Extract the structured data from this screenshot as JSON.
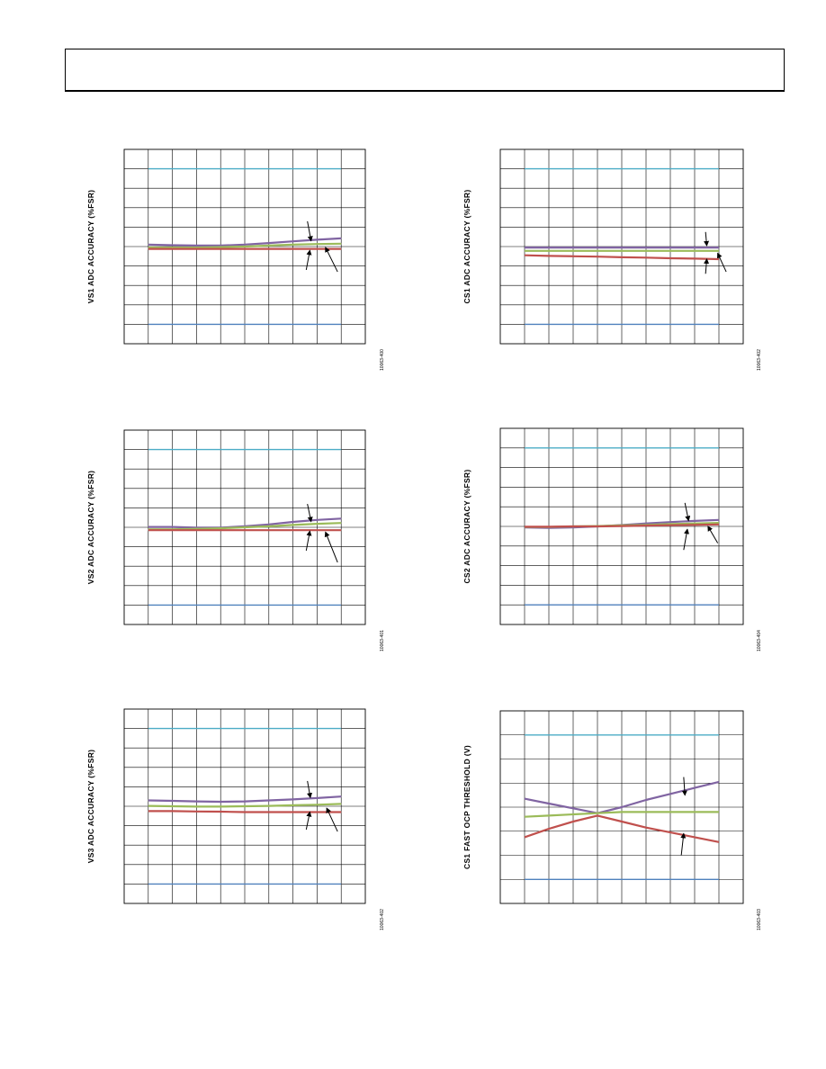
{
  "header": {
    "title": ""
  },
  "chart_data": [
    {
      "id": "vs1",
      "type": "line",
      "ylabel": "VS1 ADC ACCURACY (%FSR)",
      "figure_id": "10063-400",
      "x": [
        0,
        1,
        2,
        3,
        4,
        5,
        6,
        7,
        8
      ],
      "xlim": [
        0,
        9
      ],
      "ylim": [
        -5,
        5
      ],
      "grid": true,
      "series": [
        {
          "color": "#4bacc6",
          "values": [
            4,
            4,
            4,
            4,
            4,
            4,
            4,
            4,
            4
          ]
        },
        {
          "color": "#4f81bd",
          "values": [
            -4,
            -4,
            -4,
            -4,
            -4,
            -4,
            -4,
            -4,
            -4
          ]
        },
        {
          "color": "#8064a2",
          "values": [
            0.1,
            0.07,
            0.05,
            0.05,
            0.1,
            0.18,
            0.27,
            0.35,
            0.42
          ]
        },
        {
          "color": "#9bbb59",
          "values": [
            -0.05,
            -0.05,
            -0.05,
            -0.03,
            0.0,
            0.05,
            0.1,
            0.13,
            0.15
          ]
        },
        {
          "color": "#c0504d",
          "values": [
            -0.12,
            -0.12,
            -0.12,
            -0.12,
            -0.12,
            -0.12,
            -0.12,
            -0.12,
            -0.12
          ]
        }
      ],
      "arrows": [
        {
          "from": [
            6.6,
            1.3
          ],
          "to": [
            6.75,
            0.3
          ]
        },
        {
          "from": [
            6.55,
            -1.2
          ],
          "to": [
            6.7,
            -0.2
          ]
        },
        {
          "from": [
            7.85,
            -1.3
          ],
          "to": [
            7.35,
            -0.05
          ]
        }
      ]
    },
    {
      "id": "cs1",
      "type": "line",
      "ylabel": "CS1 ADC ACCURACY (%FSR)",
      "figure_id": "10063-402",
      "x": [
        0,
        1,
        2,
        3,
        4,
        5,
        6,
        7,
        8
      ],
      "xlim": [
        0,
        9
      ],
      "ylim": [
        -5,
        5
      ],
      "grid": true,
      "series": [
        {
          "color": "#4bacc6",
          "values": [
            4,
            4,
            4,
            4,
            4,
            4,
            4,
            4,
            4
          ]
        },
        {
          "color": "#4f81bd",
          "values": [
            -4,
            -4,
            -4,
            -4,
            -4,
            -4,
            -4,
            -4,
            -4
          ]
        },
        {
          "color": "#8064a2",
          "values": [
            -0.05,
            -0.05,
            -0.05,
            -0.05,
            -0.05,
            -0.05,
            -0.05,
            -0.05,
            -0.05
          ]
        },
        {
          "color": "#9bbb59",
          "values": [
            -0.22,
            -0.22,
            -0.22,
            -0.22,
            -0.22,
            -0.22,
            -0.22,
            -0.22,
            -0.22
          ]
        },
        {
          "color": "#c0504d",
          "values": [
            -0.45,
            -0.48,
            -0.5,
            -0.52,
            -0.55,
            -0.57,
            -0.6,
            -0.62,
            -0.65
          ]
        }
      ],
      "arrows": [
        {
          "from": [
            7.45,
            0.75
          ],
          "to": [
            7.5,
            0.05
          ]
        },
        {
          "from": [
            7.45,
            -1.4
          ],
          "to": [
            7.5,
            -0.65
          ]
        },
        {
          "from": [
            8.3,
            -1.3
          ],
          "to": [
            7.95,
            -0.35
          ]
        }
      ]
    },
    {
      "id": "vs2",
      "type": "line",
      "ylabel": "VS2 ADC ACCURACY (%FSR)",
      "figure_id": "10063-401",
      "x": [
        0,
        1,
        2,
        3,
        4,
        5,
        6,
        7,
        8
      ],
      "xlim": [
        0,
        9
      ],
      "ylim": [
        -5,
        5
      ],
      "grid": true,
      "series": [
        {
          "color": "#4bacc6",
          "values": [
            4,
            4,
            4,
            4,
            4,
            4,
            4,
            4,
            4
          ]
        },
        {
          "color": "#4f81bd",
          "values": [
            -4,
            -4,
            -4,
            -4,
            -4,
            -4,
            -4,
            -4,
            -4
          ]
        },
        {
          "color": "#8064a2",
          "values": [
            0.02,
            0.02,
            -0.02,
            -0.02,
            0.05,
            0.15,
            0.28,
            0.38,
            0.45
          ]
        },
        {
          "color": "#9bbb59",
          "values": [
            -0.1,
            -0.1,
            -0.08,
            -0.05,
            0.0,
            0.05,
            0.12,
            0.18,
            0.22
          ]
        },
        {
          "color": "#c0504d",
          "values": [
            -0.15,
            -0.15,
            -0.15,
            -0.15,
            -0.15,
            -0.15,
            -0.15,
            -0.15,
            -0.15
          ]
        }
      ],
      "arrows": [
        {
          "from": [
            6.6,
            1.2
          ],
          "to": [
            6.75,
            0.3
          ]
        },
        {
          "from": [
            6.55,
            -1.2
          ],
          "to": [
            6.7,
            -0.2
          ]
        },
        {
          "from": [
            7.85,
            -1.8
          ],
          "to": [
            7.35,
            -0.25
          ]
        }
      ]
    },
    {
      "id": "cs2",
      "type": "line",
      "ylabel": "CS2 ADC ACCURACY (%FSR)",
      "figure_id": "10063-404",
      "x": [
        0,
        1,
        2,
        3,
        4,
        5,
        6,
        7,
        8
      ],
      "xlim": [
        0,
        9
      ],
      "ylim": [
        -5,
        5
      ],
      "grid": true,
      "series": [
        {
          "color": "#4bacc6",
          "values": [
            4,
            4,
            4,
            4,
            4,
            4,
            4,
            4,
            4
          ]
        },
        {
          "color": "#4f81bd",
          "values": [
            -4,
            -4,
            -4,
            -4,
            -4,
            -4,
            -4,
            -4,
            -4
          ]
        },
        {
          "color": "#8064a2",
          "values": [
            -0.05,
            -0.08,
            -0.05,
            0.0,
            0.07,
            0.15,
            0.22,
            0.28,
            0.33
          ]
        },
        {
          "color": "#9bbb59",
          "values": [
            -0.03,
            -0.03,
            0.0,
            0.02,
            0.05,
            0.08,
            0.12,
            0.15,
            0.18
          ]
        },
        {
          "color": "#c0504d",
          "values": [
            -0.02,
            -0.02,
            0.0,
            0.0,
            0.02,
            0.04,
            0.06,
            0.08,
            0.1
          ]
        }
      ],
      "arrows": [
        {
          "from": [
            6.6,
            1.2
          ],
          "to": [
            6.75,
            0.3
          ]
        },
        {
          "from": [
            6.55,
            -1.2
          ],
          "to": [
            6.7,
            -0.15
          ]
        },
        {
          "from": [
            7.95,
            -0.85
          ],
          "to": [
            7.55,
            0.0
          ]
        }
      ]
    },
    {
      "id": "vs3",
      "type": "line",
      "ylabel": "VS3 ADC ACCURACY (%FSR)",
      "figure_id": "10063-402",
      "x": [
        0,
        1,
        2,
        3,
        4,
        5,
        6,
        7,
        8
      ],
      "xlim": [
        0,
        9
      ],
      "ylim": [
        -5,
        5
      ],
      "grid": true,
      "series": [
        {
          "color": "#4bacc6",
          "values": [
            4,
            4,
            4,
            4,
            4,
            4,
            4,
            4,
            4
          ]
        },
        {
          "color": "#4f81bd",
          "values": [
            -4,
            -4,
            -4,
            -4,
            -4,
            -4,
            -4,
            -4,
            -4
          ]
        },
        {
          "color": "#8064a2",
          "values": [
            0.3,
            0.28,
            0.25,
            0.23,
            0.25,
            0.3,
            0.35,
            0.42,
            0.5
          ]
        },
        {
          "color": "#9bbb59",
          "values": [
            0.02,
            0.0,
            -0.02,
            -0.02,
            0.0,
            0.02,
            0.05,
            0.08,
            0.12
          ]
        },
        {
          "color": "#c0504d",
          "values": [
            -0.25,
            -0.25,
            -0.27,
            -0.28,
            -0.3,
            -0.3,
            -0.3,
            -0.3,
            -0.3
          ]
        }
      ],
      "arrows": [
        {
          "from": [
            6.6,
            1.3
          ],
          "to": [
            6.72,
            0.45
          ]
        },
        {
          "from": [
            6.55,
            -1.2
          ],
          "to": [
            6.7,
            -0.3
          ]
        },
        {
          "from": [
            7.85,
            -1.3
          ],
          "to": [
            7.4,
            -0.1
          ]
        }
      ]
    },
    {
      "id": "cs1-ocp",
      "type": "line",
      "ylabel": "CS1 FAST OCP THRESHOLD (V)",
      "figure_id": "10063-403",
      "x": [
        0,
        1,
        2,
        3,
        4,
        5,
        6,
        7,
        8
      ],
      "xlim": [
        0,
        9
      ],
      "ylim": [
        -4,
        4
      ],
      "grid": true,
      "series": [
        {
          "color": "#4bacc6",
          "values": [
            3.0,
            3.0,
            3.0,
            3.0,
            3.0,
            3.0,
            3.0,
            3.0,
            3.0
          ]
        },
        {
          "color": "#4f81bd",
          "values": [
            -3.0,
            -3.0,
            -3.0,
            -3.0,
            -3.0,
            -3.0,
            -3.0,
            -3.0,
            -3.0
          ]
        },
        {
          "color": "#8064a2",
          "values": [
            0.35,
            0.15,
            -0.05,
            -0.25,
            0.0,
            0.3,
            0.55,
            0.8,
            1.05
          ]
        },
        {
          "color": "#9bbb59",
          "values": [
            -0.4,
            -0.35,
            -0.3,
            -0.25,
            -0.2,
            -0.2,
            -0.2,
            -0.2,
            -0.2
          ]
        },
        {
          "color": "#c0504d",
          "values": [
            -1.25,
            -0.9,
            -0.6,
            -0.35,
            -0.6,
            -0.85,
            -1.05,
            -1.25,
            -1.45
          ]
        }
      ],
      "arrows": [
        {
          "from": [
            6.55,
            1.25
          ],
          "to": [
            6.6,
            0.5
          ]
        },
        {
          "from": [
            6.45,
            -2.0
          ],
          "to": [
            6.55,
            -1.1
          ]
        }
      ]
    }
  ]
}
